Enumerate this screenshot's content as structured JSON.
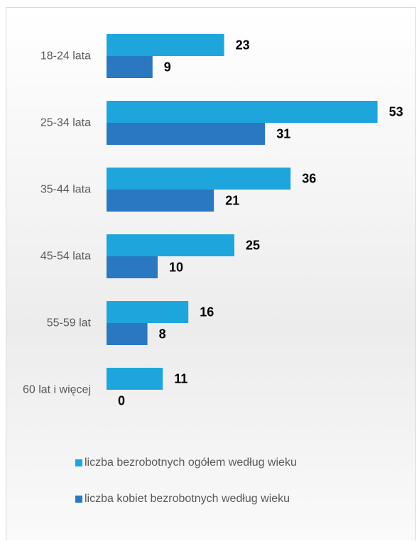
{
  "chart_data": {
    "type": "bar",
    "orientation": "horizontal",
    "categories": [
      "18-24 lata",
      "25-34 lata",
      "35-44 lata",
      "45-54 lata",
      "55-59 lat",
      "60 lat i więcej"
    ],
    "series": [
      {
        "name": "liczba bezrobotnych ogółem według wieku",
        "color": "#1ea6dc",
        "values": [
          23,
          53,
          36,
          25,
          16,
          11
        ]
      },
      {
        "name": "liczba kobiet bezrobotnych według wieku",
        "color": "#2a78bf",
        "values": [
          9,
          31,
          21,
          10,
          8,
          0
        ]
      }
    ],
    "xlim": [
      0,
      60
    ],
    "grid": false,
    "legend": "bottom"
  }
}
